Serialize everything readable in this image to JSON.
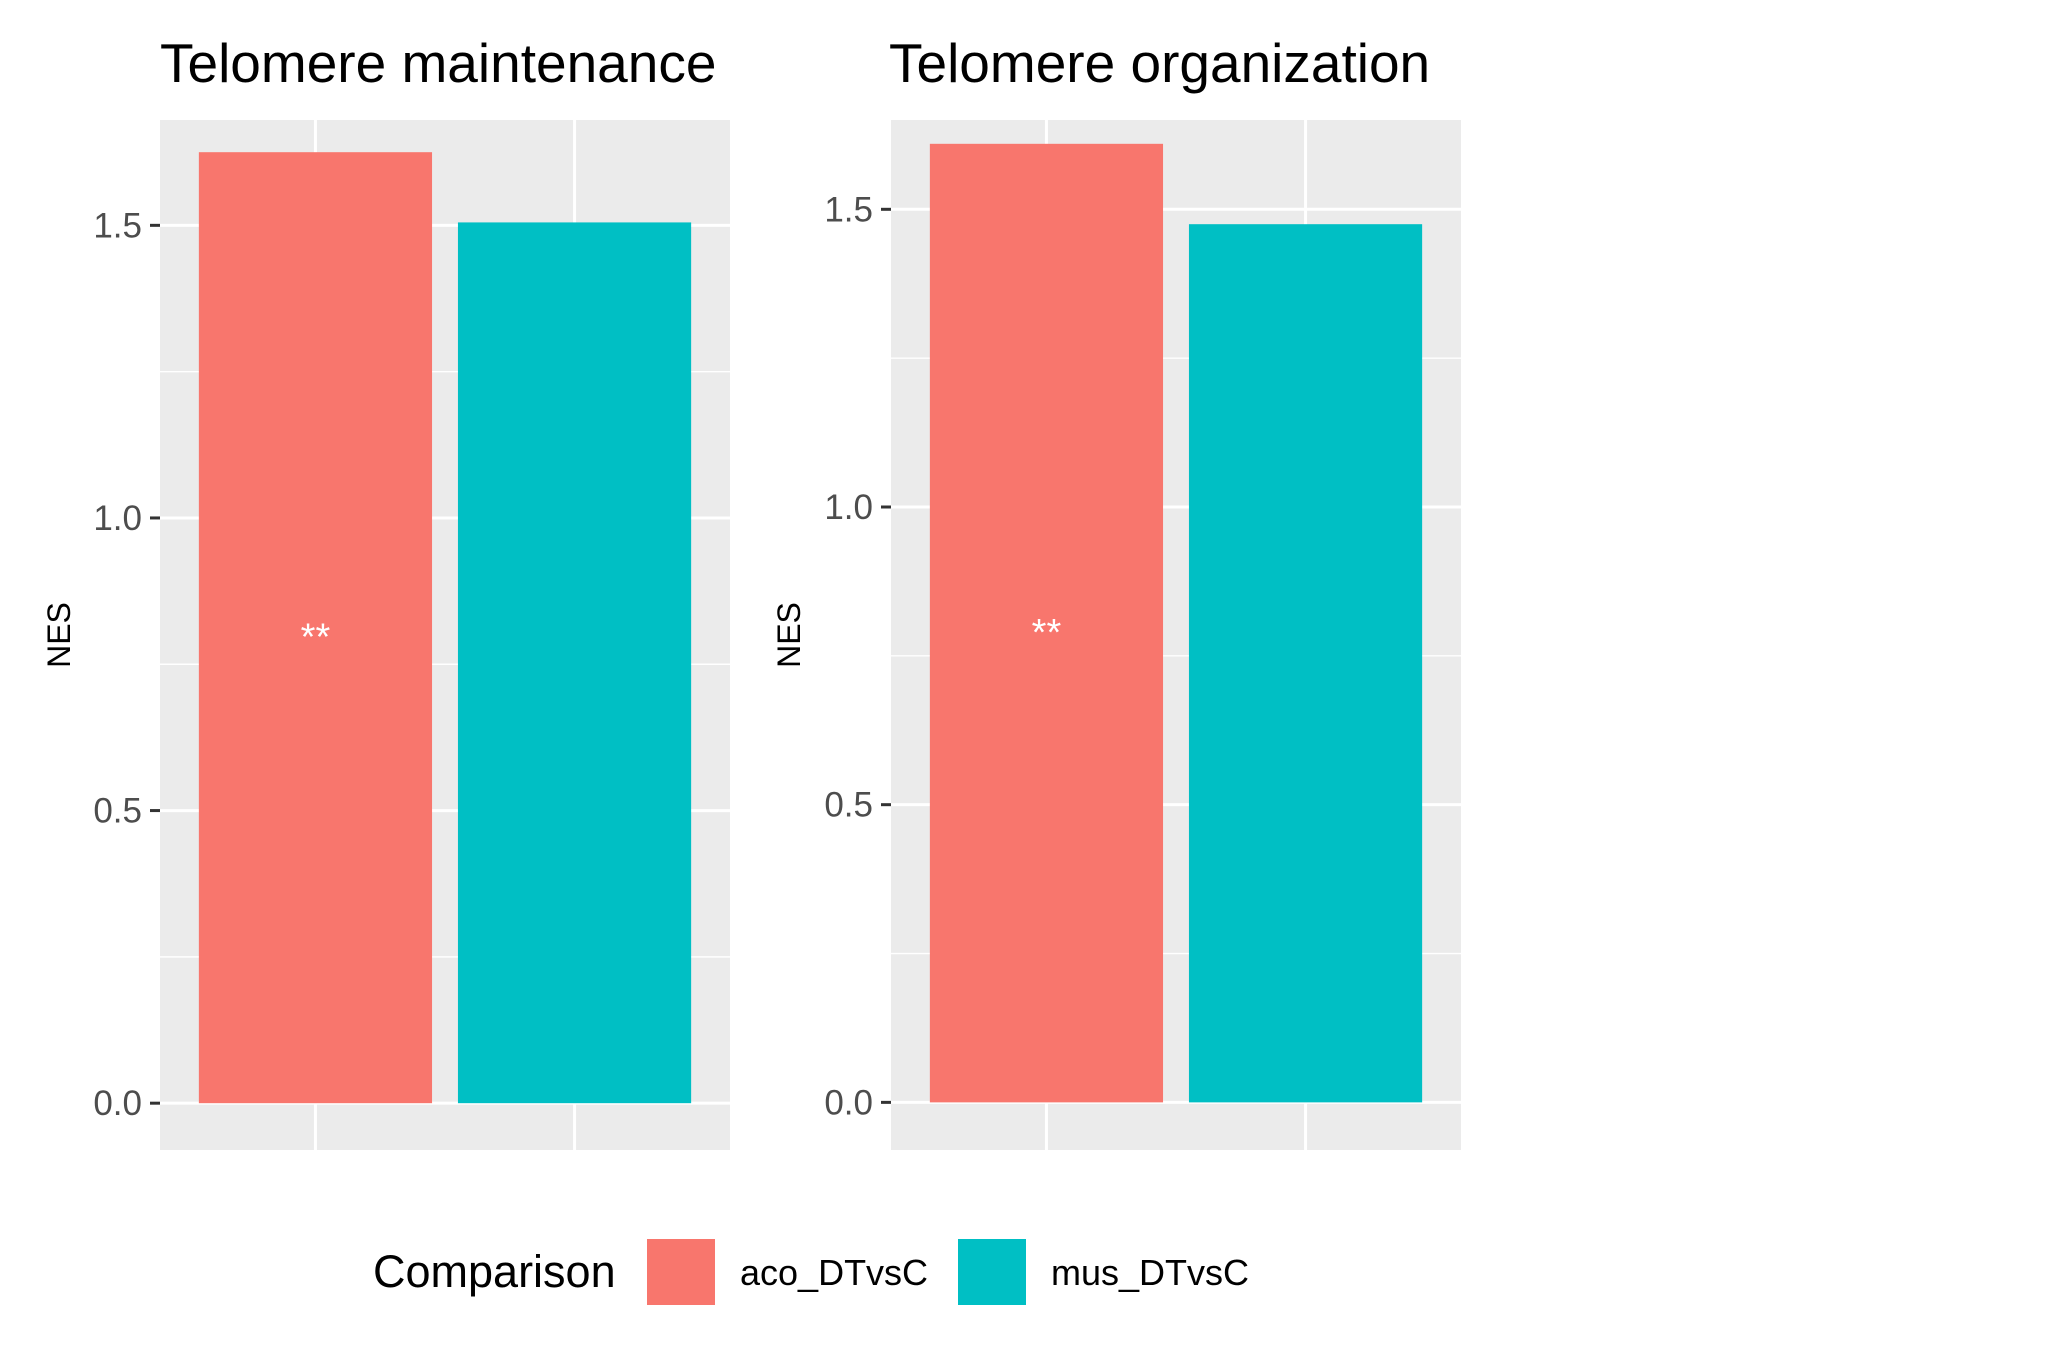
{
  "chart_data": [
    {
      "type": "bar",
      "title": "Telomere maintenance",
      "xlabel": "",
      "ylabel": "NES",
      "ylim": [
        -0.08,
        1.68
      ],
      "yticks": [
        "0.0",
        "0.5",
        "1.0",
        "1.5"
      ],
      "categories": [
        "aco_DTvsC",
        "mus_DTvsC"
      ],
      "values": [
        1.625,
        1.505
      ],
      "annotations": [
        "**",
        ""
      ],
      "grid": true
    },
    {
      "type": "bar",
      "title": "Telomere organization",
      "xlabel": "",
      "ylabel": "NES",
      "ylim": [
        -0.08,
        1.65
      ],
      "yticks": [
        "0.0",
        "0.5",
        "1.0",
        "1.5"
      ],
      "categories": [
        "aco_DTvsC",
        "mus_DTvsC"
      ],
      "values": [
        1.61,
        1.475
      ],
      "annotations": [
        "**",
        ""
      ],
      "grid": true
    }
  ],
  "legend": {
    "title": "Comparison",
    "position": "bottom",
    "items": [
      {
        "label": "aco_DTvsC",
        "color": "#F8766D"
      },
      {
        "label": "mus_DTvsC",
        "color": "#00BFC4"
      }
    ]
  },
  "colors": {
    "panel_background": "#EBEBEB",
    "grid_line": "#FFFFFF",
    "tick_text": "#4D4D4D",
    "annotation_text": "#FFFFFF"
  }
}
